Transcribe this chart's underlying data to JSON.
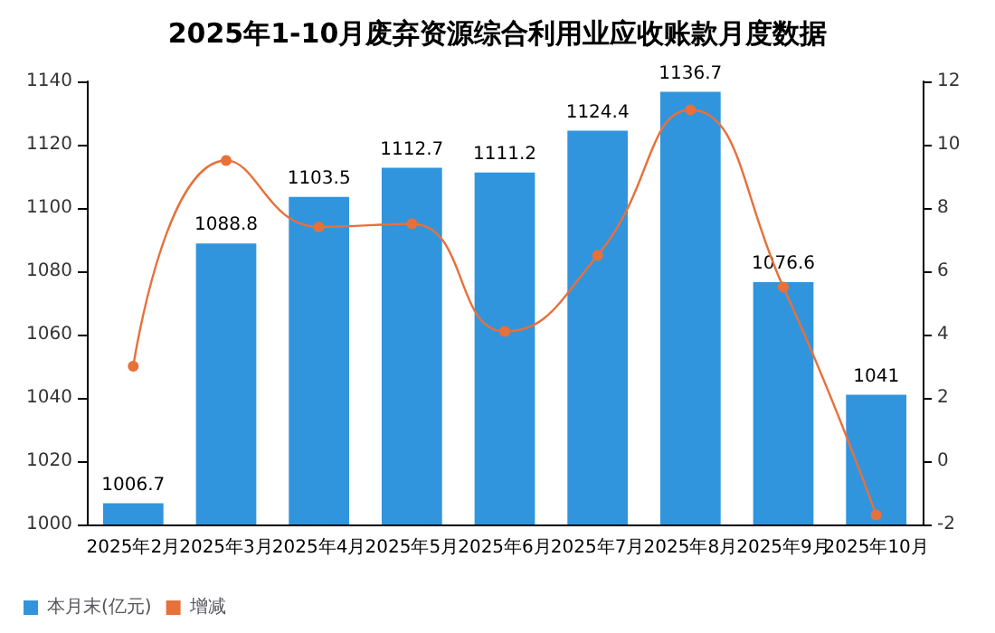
{
  "chart_data": {
    "type": "bar",
    "title": "2025年1-10月废弃资源综合利用业应收账款月度数据",
    "categories": [
      "2025年2月",
      "2025年3月",
      "2025年4月",
      "2025年5月",
      "2025年6月",
      "2025年7月",
      "2025年8月",
      "2025年9月",
      "2025年10月"
    ],
    "series": [
      {
        "name": "本月末(亿元)",
        "color": "#3095dd",
        "values": [
          1006.7,
          1088.8,
          1103.5,
          1112.7,
          1111.2,
          1124.4,
          1136.7,
          1076.6,
          1041
        ],
        "data_labels": true
      },
      {
        "name": "增减",
        "type": "line",
        "axis": "y2",
        "color": "#e8703a",
        "marker": "circle",
        "values": [
          3.0,
          9.5,
          7.4,
          7.5,
          4.1,
          6.5,
          11.1,
          5.5,
          -1.7
        ]
      }
    ],
    "ylim": [
      1000,
      1140
    ],
    "yticks": [
      1000,
      1020,
      1040,
      1060,
      1080,
      1100,
      1120,
      1140
    ],
    "y2lim": [
      -2,
      12
    ],
    "y2ticks": [
      -2,
      0,
      2,
      4,
      6,
      8,
      10,
      12
    ],
    "legend": "bottom left"
  }
}
